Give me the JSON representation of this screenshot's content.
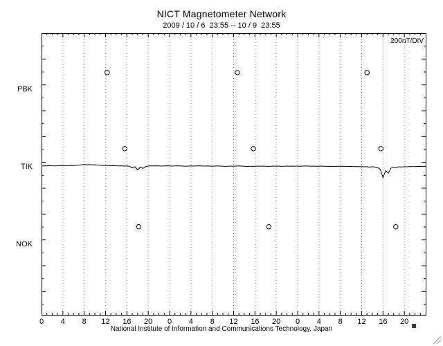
{
  "chart_data": {
    "type": "line",
    "title": "NICT Magnetometer Network",
    "subtitle": "2009 / 10 / 6  23:55 -- 10 / 9  23:55",
    "scale_label": "200nT/DIV",
    "footer": "National Institute of Information and Communications Technology, Japan",
    "stations": [
      "PBK",
      "TIK",
      "NOK"
    ],
    "x_hours_total": 72,
    "x_tick_step_hours": 4,
    "x_tick_labels": [
      "0",
      "4",
      "8",
      "12",
      "16",
      "20",
      "0",
      "4",
      "8",
      "12",
      "16",
      "20",
      "0",
      "4",
      "8",
      "12",
      "16",
      "20"
    ],
    "nT_per_div": 200,
    "grid": "vertical-dotted",
    "legend": "none",
    "colors": {
      "line": "#000000",
      "grid": "#8a8a8a",
      "background": "#ffffff",
      "text": "#000000"
    },
    "series": [
      {
        "name": "TIK",
        "station": "TIK",
        "sample_interval_hours": 0.5,
        "values_nT": [
          0,
          2,
          1,
          3,
          2,
          1,
          2,
          4,
          3,
          2,
          3,
          5,
          4,
          6,
          8,
          10,
          12,
          10,
          11,
          9,
          10,
          8,
          6,
          5,
          4,
          3,
          2,
          3,
          2,
          1,
          2,
          0,
          1,
          -2,
          -15,
          -5,
          -30,
          -8,
          -18,
          -4,
          0,
          2,
          1,
          2,
          1,
          0,
          1,
          2,
          1,
          0,
          1,
          2,
          1,
          0,
          -1,
          0,
          1,
          0,
          1,
          2,
          1,
          0,
          1,
          0,
          -1,
          0,
          1,
          0,
          -1,
          -2,
          -1,
          0,
          -1,
          0,
          1,
          0,
          -1,
          -3,
          -2,
          -1,
          -2,
          0,
          -1,
          0,
          -1,
          -2,
          -1,
          0,
          -1,
          0,
          -2,
          -1,
          0,
          -1,
          0,
          -1,
          0,
          -1,
          0,
          1,
          0,
          -1,
          0,
          -2,
          -1,
          0,
          -1,
          -2,
          -1,
          -3,
          -2,
          -1,
          -2,
          -1,
          -2,
          -3,
          -2,
          -4,
          -3,
          -5,
          -4,
          -6,
          -5,
          -8,
          -5,
          -8,
          -12,
          -25,
          -90,
          -35,
          -55,
          -15,
          -10,
          -12,
          -5,
          -8,
          -4,
          -6,
          -3,
          -4,
          -3,
          -2,
          -3,
          -2,
          -2
        ]
      }
    ],
    "markers": [
      {
        "station": "PBK",
        "hour": 12.3,
        "offset_nT": 124
      },
      {
        "station": "PBK",
        "hour": 36.7,
        "offset_nT": 124
      },
      {
        "station": "PBK",
        "hour": 61.0,
        "offset_nT": 124
      },
      {
        "station": "TIK",
        "hour": 15.6,
        "offset_nT": 135
      },
      {
        "station": "TIK",
        "hour": 39.7,
        "offset_nT": 135
      },
      {
        "station": "TIK",
        "hour": 63.6,
        "offset_nT": 135
      },
      {
        "station": "NOK",
        "hour": 18.2,
        "offset_nT": 130
      },
      {
        "station": "NOK",
        "hour": 42.6,
        "offset_nT": 130
      },
      {
        "station": "NOK",
        "hour": 66.4,
        "offset_nT": 130
      }
    ]
  }
}
